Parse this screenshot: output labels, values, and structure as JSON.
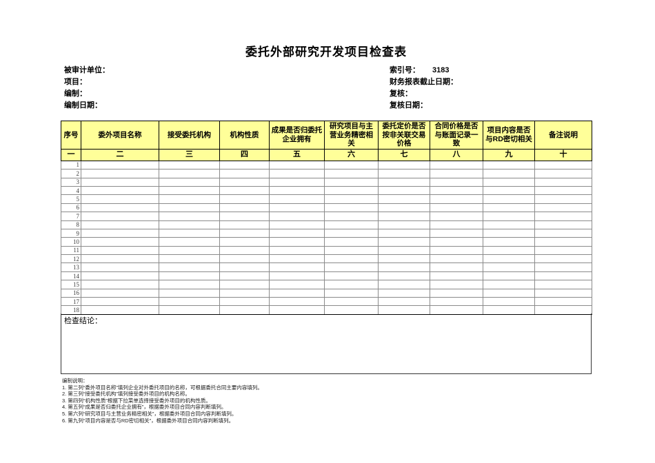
{
  "page": {
    "title": "委托外部研究开发项目检查表"
  },
  "meta": {
    "left": [
      {
        "label": "被审计单位：",
        "value": ""
      },
      {
        "label": "项目：",
        "value": ""
      },
      {
        "label": "编制：",
        "value": ""
      },
      {
        "label": "编制日期：",
        "value": ""
      }
    ],
    "right": [
      {
        "label": "索引号：",
        "value": "3183"
      },
      {
        "label": "财务报表截止日期：",
        "value": ""
      },
      {
        "label": "复核：",
        "value": ""
      },
      {
        "label": "复核日期：",
        "value": ""
      }
    ]
  },
  "table": {
    "columns": [
      {
        "title": "序号",
        "num": "一"
      },
      {
        "title": "委外项目名称",
        "num": "二"
      },
      {
        "title": "接受委托机构",
        "num": "三"
      },
      {
        "title": "机构性质",
        "num": "四"
      },
      {
        "title": "成果是否归委托企业拥有",
        "num": "五"
      },
      {
        "title": "研究项目与主营业务精密相关",
        "num": "六"
      },
      {
        "title": "委托定价是否按非关联交易价格",
        "num": "七"
      },
      {
        "title": "合同价格是否与账面记录一致",
        "num": "八"
      },
      {
        "title": "项目内容是否与RD密切相关",
        "num": "九"
      },
      {
        "title": "备注说明",
        "num": "十"
      }
    ],
    "row_numbers": [
      "1",
      "2",
      "3",
      "4",
      "5",
      "6",
      "7",
      "8",
      "9",
      "10",
      "11",
      "12",
      "13",
      "14",
      "15",
      "16",
      "17",
      "18"
    ],
    "conclusion_label": "检查结论："
  },
  "notes": {
    "heading": "编制说明：",
    "lines": [
      "1. 第二列“委外项目名称”填列企业对外委托项目的名称，可根据委托合同主要内容填列。",
      "2. 第三列“接受委托机构”填列接受委外项目的机构名称。",
      "3. 第四列“机构性质”根据下拉菜单选择接受委外项目的机构性质。",
      "4. 第五列“成果是否归委托企业拥有”，根据委外项目合同内容判断填列。",
      "5. 第六列“研究项目与主营业务精密相关”，根据委外项目合同内容判断填列。",
      "6. 第九列“项目内容是否与RD密切相关”，根据委外项目合同内容判断填列。"
    ]
  },
  "colors": {
    "header_bg": "#ffff99",
    "grid_line": "#8a8a8a",
    "border": "#000000"
  }
}
